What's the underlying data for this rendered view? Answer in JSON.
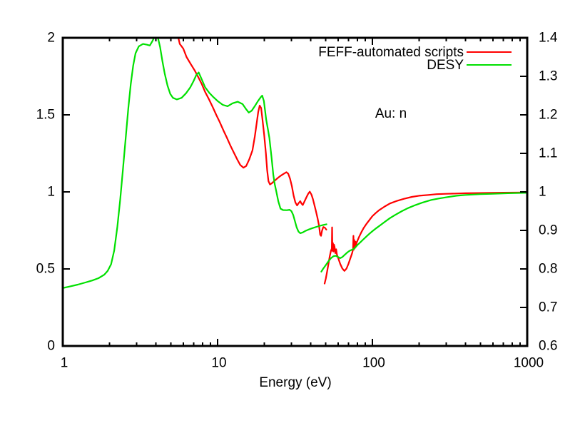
{
  "chart_data": {
    "type": "line",
    "title": "Au: n",
    "xlabel": "Energy (eV)",
    "background_color": "#ffffff",
    "axis_color": "#000000",
    "grid": false,
    "legend_position": "top-right-inside",
    "x_axis": {
      "scale": "log",
      "range": [
        1,
        1000
      ],
      "tick_values": [
        1,
        10,
        100,
        1000
      ],
      "tick_labels": [
        "1",
        "10",
        "100",
        "1000"
      ]
    },
    "y_left_axis": {
      "range": [
        0,
        2
      ],
      "tick_values": [
        0,
        0.5,
        1,
        1.5,
        2
      ],
      "tick_labels": [
        "0",
        "0.5",
        "1",
        "1.5",
        "2"
      ]
    },
    "y_right_axis": {
      "range": [
        0.6,
        1.4
      ],
      "tick_values": [
        0.6,
        0.7,
        0.8,
        0.9,
        1,
        1.1,
        1.2,
        1.3,
        1.4
      ],
      "tick_labels": [
        "0.6",
        "0.7",
        "0.8",
        "0.9",
        "1",
        "1.1",
        "1.2",
        "1.3",
        "1.4"
      ]
    },
    "legend": [
      {
        "label": "FEFF-automated scripts",
        "color": "#ff0000"
      },
      {
        "label": "DESY",
        "color": "#00e000"
      }
    ],
    "series": [
      {
        "name": "FEFF-automated scripts",
        "color": "#ff0000",
        "axis": "left",
        "segment": "low-energy",
        "points": [
          [
            5.58,
            2.0
          ],
          [
            5.7,
            1.96
          ],
          [
            6.0,
            1.93
          ],
          [
            6.3,
            1.875
          ],
          [
            6.7,
            1.83
          ],
          [
            7.1,
            1.79
          ],
          [
            7.5,
            1.745
          ],
          [
            7.9,
            1.7
          ],
          [
            8.3,
            1.65
          ],
          [
            8.8,
            1.6
          ],
          [
            9.3,
            1.55
          ],
          [
            9.8,
            1.5
          ],
          [
            10.3,
            1.455
          ],
          [
            10.9,
            1.4
          ],
          [
            11.5,
            1.35
          ],
          [
            12.1,
            1.3
          ],
          [
            12.8,
            1.25
          ],
          [
            13.4,
            1.21
          ],
          [
            14.0,
            1.175
          ],
          [
            14.7,
            1.157
          ],
          [
            15.3,
            1.168
          ],
          [
            16.0,
            1.21
          ],
          [
            16.8,
            1.27
          ],
          [
            17.4,
            1.36
          ],
          [
            17.9,
            1.45
          ],
          [
            18.3,
            1.52
          ],
          [
            18.7,
            1.56
          ],
          [
            19.1,
            1.545
          ],
          [
            19.5,
            1.47
          ],
          [
            20.0,
            1.37
          ],
          [
            20.5,
            1.25
          ],
          [
            20.9,
            1.14
          ],
          [
            21.3,
            1.07
          ],
          [
            21.8,
            1.048
          ],
          [
            22.4,
            1.056
          ],
          [
            23.2,
            1.07
          ],
          [
            24.2,
            1.086
          ],
          [
            25.4,
            1.103
          ],
          [
            26.6,
            1.116
          ],
          [
            27.8,
            1.128
          ],
          [
            28.6,
            1.118
          ],
          [
            29.4,
            1.085
          ],
          [
            30.2,
            1.035
          ],
          [
            31.0,
            0.975
          ],
          [
            31.8,
            0.932
          ],
          [
            32.6,
            0.912
          ],
          [
            33.4,
            0.928
          ],
          [
            34.2,
            0.94
          ],
          [
            34.8,
            0.925
          ],
          [
            35.5,
            0.915
          ],
          [
            36.4,
            0.938
          ],
          [
            37.4,
            0.963
          ],
          [
            38.5,
            0.988
          ],
          [
            39.4,
            1.002
          ],
          [
            40.4,
            0.982
          ],
          [
            41.3,
            0.952
          ],
          [
            42.2,
            0.915
          ],
          [
            43.1,
            0.878
          ],
          [
            44.2,
            0.83
          ],
          [
            45.2,
            0.78
          ],
          [
            46.0,
            0.722
          ],
          [
            46.6,
            0.715
          ],
          [
            47.3,
            0.748
          ],
          [
            48.2,
            0.772
          ],
          [
            49.3,
            0.768
          ],
          [
            50.4,
            0.755
          ]
        ]
      },
      {
        "name": "FEFF-automated scripts",
        "color": "#ff0000",
        "axis": "right",
        "segment": "high-energy",
        "points": [
          [
            49.1,
            0.762
          ],
          [
            50.0,
            0.775
          ],
          [
            51.0,
            0.793
          ],
          [
            52.0,
            0.813
          ],
          [
            53.0,
            0.833
          ],
          [
            54.0,
            0.847
          ],
          [
            54.7,
            0.853
          ],
          [
            54.9,
            0.908
          ],
          [
            55.2,
            0.847
          ],
          [
            55.6,
            0.867
          ],
          [
            56.0,
            0.845
          ],
          [
            56.5,
            0.863
          ],
          [
            57.0,
            0.857
          ],
          [
            57.6,
            0.841
          ],
          [
            58.3,
            0.851
          ],
          [
            59.0,
            0.837
          ],
          [
            60.0,
            0.829
          ],
          [
            62.0,
            0.813
          ],
          [
            64.0,
            0.801
          ],
          [
            66.0,
            0.795
          ],
          [
            68.0,
            0.801
          ],
          [
            70.0,
            0.813
          ],
          [
            72.0,
            0.827
          ],
          [
            74.0,
            0.841
          ],
          [
            75.0,
            0.851
          ],
          [
            75.4,
            0.886
          ],
          [
            75.9,
            0.85
          ],
          [
            76.4,
            0.875
          ],
          [
            77.0,
            0.854
          ],
          [
            77.7,
            0.871
          ],
          [
            78.4,
            0.859
          ],
          [
            79.0,
            0.868
          ],
          [
            80.0,
            0.873
          ],
          [
            82.0,
            0.883
          ],
          [
            85.0,
            0.896
          ],
          [
            88.0,
            0.907
          ],
          [
            92.0,
            0.918
          ],
          [
            96.0,
            0.928
          ],
          [
            100,
            0.937
          ],
          [
            105,
            0.945
          ],
          [
            110,
            0.952
          ],
          [
            120,
            0.962
          ],
          [
            130,
            0.97
          ],
          [
            145,
            0.977
          ],
          [
            160,
            0.982
          ],
          [
            180,
            0.987
          ],
          [
            200,
            0.99
          ],
          [
            230,
            0.992
          ],
          [
            260,
            0.994
          ],
          [
            300,
            0.995
          ],
          [
            400,
            0.9965
          ],
          [
            500,
            0.997
          ],
          [
            700,
            0.998
          ],
          [
            1000,
            0.9985
          ]
        ]
      },
      {
        "name": "DESY",
        "color": "#00e000",
        "axis": "left",
        "segment": "low-energy",
        "points": [
          [
            1.0,
            0.376
          ],
          [
            1.1,
            0.385
          ],
          [
            1.25,
            0.398
          ],
          [
            1.4,
            0.412
          ],
          [
            1.55,
            0.425
          ],
          [
            1.7,
            0.44
          ],
          [
            1.85,
            0.462
          ],
          [
            1.95,
            0.487
          ],
          [
            2.05,
            0.53
          ],
          [
            2.15,
            0.62
          ],
          [
            2.25,
            0.77
          ],
          [
            2.35,
            0.95
          ],
          [
            2.45,
            1.15
          ],
          [
            2.55,
            1.35
          ],
          [
            2.65,
            1.54
          ],
          [
            2.75,
            1.7
          ],
          [
            2.85,
            1.82
          ],
          [
            2.95,
            1.9
          ],
          [
            3.1,
            1.945
          ],
          [
            3.3,
            1.96
          ],
          [
            3.5,
            1.955
          ],
          [
            3.65,
            1.95
          ],
          [
            3.8,
            1.98
          ],
          [
            3.88,
            2.0
          ],
          [
            4.12,
            2.0
          ],
          [
            4.25,
            1.94
          ],
          [
            4.4,
            1.85
          ],
          [
            4.55,
            1.77
          ],
          [
            4.75,
            1.69
          ],
          [
            4.95,
            1.635
          ],
          [
            5.15,
            1.61
          ],
          [
            5.45,
            1.6
          ],
          [
            5.85,
            1.61
          ],
          [
            6.25,
            1.64
          ],
          [
            6.65,
            1.678
          ],
          [
            7.0,
            1.72
          ],
          [
            7.3,
            1.76
          ],
          [
            7.55,
            1.775
          ],
          [
            7.9,
            1.73
          ],
          [
            8.3,
            1.68
          ],
          [
            8.8,
            1.645
          ],
          [
            9.4,
            1.615
          ],
          [
            10.0,
            1.59
          ],
          [
            10.8,
            1.565
          ],
          [
            11.6,
            1.556
          ],
          [
            12.5,
            1.575
          ],
          [
            13.5,
            1.585
          ],
          [
            14.5,
            1.57
          ],
          [
            15.2,
            1.54
          ],
          [
            15.9,
            1.515
          ],
          [
            16.6,
            1.527
          ],
          [
            17.4,
            1.557
          ],
          [
            18.3,
            1.592
          ],
          [
            19.0,
            1.615
          ],
          [
            19.4,
            1.625
          ],
          [
            19.9,
            1.59
          ],
          [
            20.6,
            1.47
          ],
          [
            21.1,
            1.41
          ],
          [
            21.6,
            1.35
          ],
          [
            22.3,
            1.225
          ],
          [
            22.9,
            1.11
          ],
          [
            23.4,
            1.05
          ],
          [
            23.9,
            1.007
          ],
          [
            24.7,
            0.937
          ],
          [
            25.5,
            0.891
          ],
          [
            26.5,
            0.882
          ],
          [
            28.0,
            0.881
          ],
          [
            29.2,
            0.884
          ],
          [
            30.0,
            0.875
          ],
          [
            30.8,
            0.85
          ],
          [
            31.6,
            0.81
          ],
          [
            32.4,
            0.77
          ],
          [
            33.3,
            0.742
          ],
          [
            34.2,
            0.732
          ],
          [
            35.5,
            0.737
          ],
          [
            37.0,
            0.747
          ],
          [
            39.0,
            0.757
          ],
          [
            41.0,
            0.765
          ],
          [
            43.5,
            0.773
          ],
          [
            46.0,
            0.78
          ],
          [
            48.0,
            0.785
          ],
          [
            50.5,
            0.79
          ]
        ]
      },
      {
        "name": "DESY",
        "color": "#00e000",
        "axis": "right",
        "segment": "high-energy",
        "points": [
          [
            46.8,
            0.793
          ],
          [
            48.0,
            0.8
          ],
          [
            50.0,
            0.81
          ],
          [
            52.0,
            0.82
          ],
          [
            54.0,
            0.828
          ],
          [
            56.0,
            0.833
          ],
          [
            58.0,
            0.834
          ],
          [
            60.0,
            0.831
          ],
          [
            62.0,
            0.828
          ],
          [
            64.0,
            0.831
          ],
          [
            66.0,
            0.836
          ],
          [
            68.0,
            0.841
          ],
          [
            70.0,
            0.845
          ],
          [
            72.0,
            0.848
          ],
          [
            74.0,
            0.85
          ],
          [
            76.0,
            0.852
          ],
          [
            78.0,
            0.857
          ],
          [
            80.0,
            0.862
          ],
          [
            84.0,
            0.87
          ],
          [
            88.0,
            0.878
          ],
          [
            92.0,
            0.885
          ],
          [
            96.0,
            0.892
          ],
          [
            100,
            0.898
          ],
          [
            106,
            0.906
          ],
          [
            112,
            0.913
          ],
          [
            120,
            0.922
          ],
          [
            130,
            0.932
          ],
          [
            140,
            0.94
          ],
          [
            155,
            0.95
          ],
          [
            170,
            0.958
          ],
          [
            190,
            0.966
          ],
          [
            210,
            0.972
          ],
          [
            240,
            0.979
          ],
          [
            270,
            0.983
          ],
          [
            300,
            0.986
          ],
          [
            350,
            0.99
          ],
          [
            400,
            0.992
          ],
          [
            500,
            0.994
          ],
          [
            600,
            0.995
          ],
          [
            750,
            0.9965
          ],
          [
            1000,
            0.9975
          ]
        ]
      }
    ]
  }
}
